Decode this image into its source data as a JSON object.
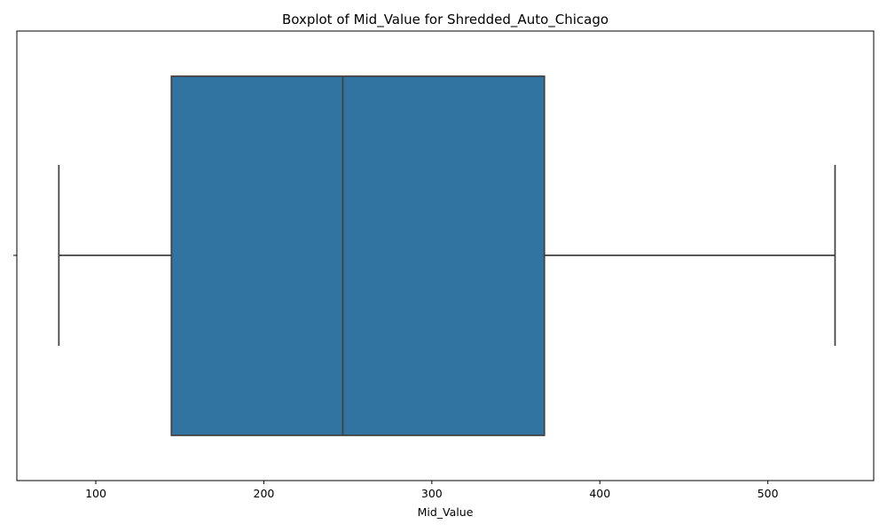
{
  "chart_data": {
    "type": "boxplot",
    "title": "Boxplot of Mid_Value for Shredded_Auto_Chicago",
    "xlabel": "Mid_Value",
    "ylabel": "",
    "orientation": "horizontal",
    "xlim": [
      53,
      563
    ],
    "x_ticks": [
      100,
      200,
      300,
      400,
      500
    ],
    "x_tick_labels": [
      "100",
      "200",
      "300",
      "400",
      "500"
    ],
    "grid": false,
    "legend": false,
    "series": [
      {
        "whisker_low": 78,
        "q1": 145,
        "median": 247,
        "q3": 367,
        "whisker_high": 540,
        "color": "#3274a1",
        "edge_color": "#3f3f3f"
      }
    ]
  }
}
